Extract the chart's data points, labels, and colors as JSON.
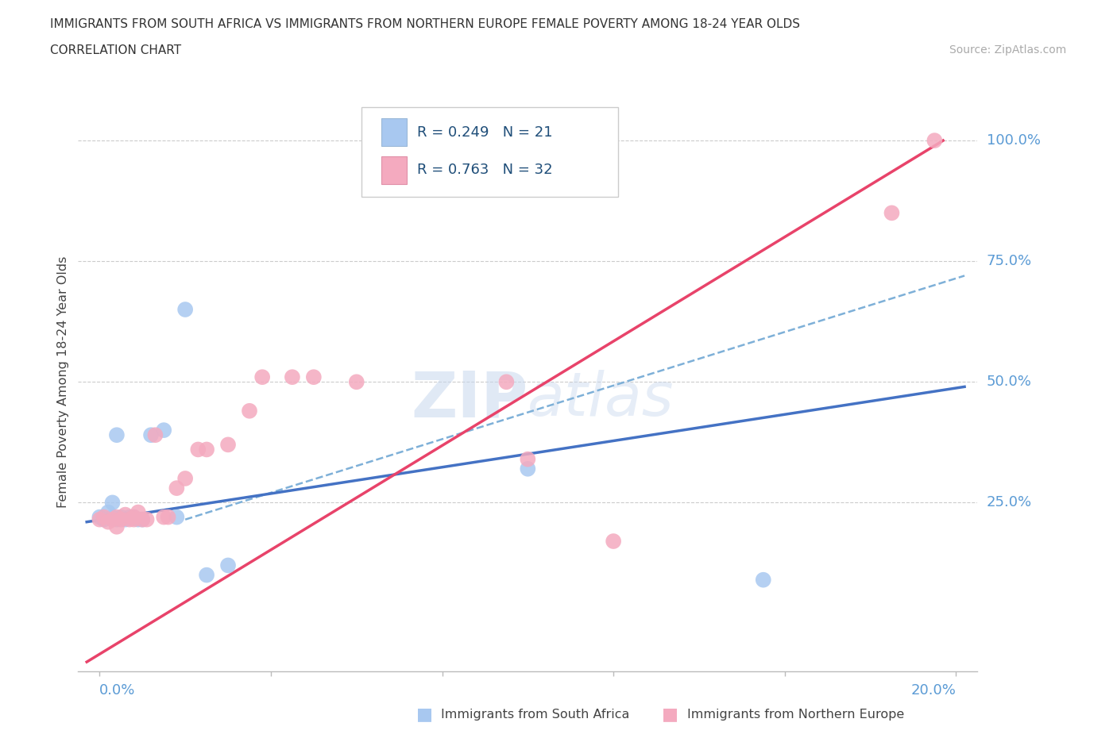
{
  "title_line1": "IMMIGRANTS FROM SOUTH AFRICA VS IMMIGRANTS FROM NORTHERN EUROPE FEMALE POVERTY AMONG 18-24 YEAR OLDS",
  "title_line2": "CORRELATION CHART",
  "source": "Source: ZipAtlas.com",
  "ylabel": "Female Poverty Among 18-24 Year Olds",
  "blue_color": "#A8C8F0",
  "pink_color": "#F4AABF",
  "blue_line_color": "#4472C4",
  "pink_line_color": "#E8436A",
  "dashed_line_color": "#7EB0D8",
  "watermark": "ZIPatlas",
  "blue_label": "Immigrants from South Africa",
  "pink_label": "Immigrants from Northern Europe",
  "legend_text1": "R = 0.249   N = 21",
  "legend_text2": "R = 0.763   N = 32",
  "xlim": [
    0.0,
    0.2
  ],
  "ylim": [
    -0.1,
    1.1
  ],
  "blue_x": [
    0.0,
    0.001,
    0.002,
    0.003,
    0.003,
    0.004,
    0.004,
    0.005,
    0.006,
    0.007,
    0.008,
    0.009,
    0.01,
    0.012,
    0.015,
    0.018,
    0.02,
    0.025,
    0.03,
    0.1,
    0.155
  ],
  "blue_y": [
    0.22,
    0.215,
    0.23,
    0.22,
    0.25,
    0.215,
    0.39,
    0.22,
    0.215,
    0.22,
    0.22,
    0.215,
    0.215,
    0.39,
    0.4,
    0.22,
    0.65,
    0.1,
    0.12,
    0.32,
    0.09
  ],
  "pink_x": [
    0.0,
    0.001,
    0.002,
    0.003,
    0.004,
    0.004,
    0.005,
    0.006,
    0.007,
    0.008,
    0.008,
    0.009,
    0.01,
    0.011,
    0.013,
    0.015,
    0.016,
    0.018,
    0.02,
    0.023,
    0.025,
    0.03,
    0.035,
    0.038,
    0.045,
    0.05,
    0.06,
    0.095,
    0.1,
    0.12,
    0.185,
    0.195
  ],
  "pink_y": [
    0.215,
    0.22,
    0.21,
    0.215,
    0.22,
    0.2,
    0.215,
    0.225,
    0.215,
    0.22,
    0.215,
    0.23,
    0.215,
    0.215,
    0.39,
    0.22,
    0.22,
    0.28,
    0.3,
    0.36,
    0.36,
    0.37,
    0.44,
    0.51,
    0.51,
    0.51,
    0.5,
    0.5,
    0.34,
    0.17,
    0.85,
    1.0
  ]
}
